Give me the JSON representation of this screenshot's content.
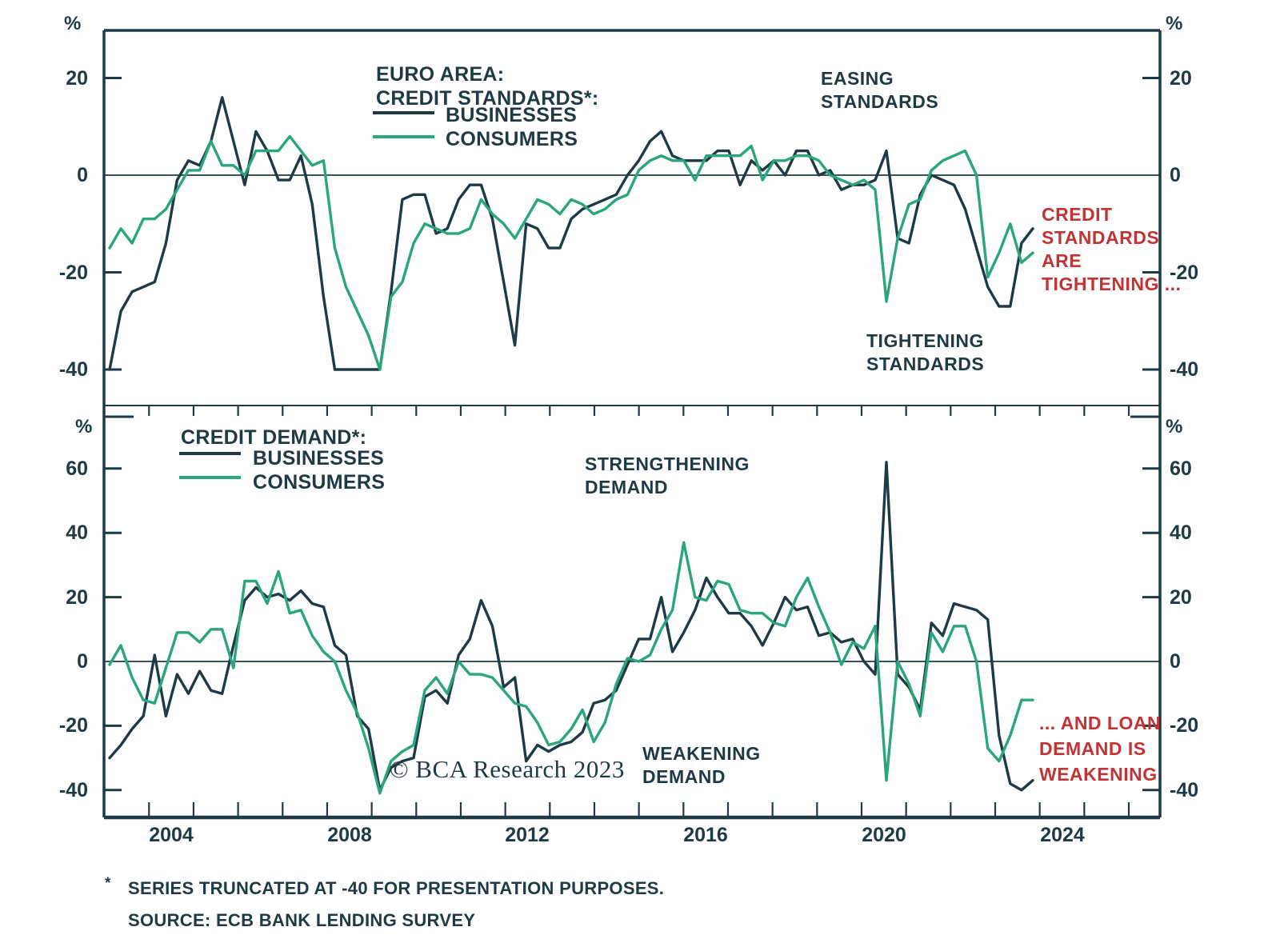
{
  "percent_symbol": "%",
  "x_axis": {
    "labels": [
      "2004",
      "2008",
      "2012",
      "2016",
      "2020",
      "2024"
    ]
  },
  "watermark": "© BCA Research 2023",
  "footnote": {
    "marker": "*",
    "line1": "SERIES TRUNCATED AT -40 FOR PRESENTATION PURPOSES.",
    "line2": "SOURCE: ECB BANK LENDING SURVEY"
  },
  "colors": {
    "businesses": "#1d3a45",
    "consumers": "#2aa57c",
    "red_annotation": "#c23434",
    "axis": "#1d3a45",
    "background": "#fefefe"
  },
  "chart_data": [
    {
      "type": "line",
      "panel": "top",
      "title": "EURO AREA: CREDIT STANDARDS*",
      "legend": {
        "title_lines": [
          "EURO AREA:",
          "CREDIT STANDARDS*:"
        ],
        "entries": [
          "BUSINESSES",
          "CONSUMERS"
        ]
      },
      "x_unit": "quarterly",
      "x_start": "2003Q1",
      "x_end": "2023Q3",
      "y_axis_label": "%",
      "ylim": [
        -45,
        30
      ],
      "y_tick_labels": [
        "20",
        "0",
        "-20",
        "-40"
      ],
      "y_ticks": [
        20,
        0,
        -20,
        -40
      ],
      "grid": "zero-line-only",
      "series": [
        {
          "name": "BUSINESSES",
          "color": "#1d3a45",
          "values": [
            -40,
            -28,
            -24,
            -23,
            -22,
            -14,
            -1,
            3,
            2,
            7,
            16,
            7,
            -2,
            9,
            5,
            -1,
            -1,
            4,
            -6,
            -25,
            -40,
            -40,
            -40,
            -40,
            -40,
            -24,
            -5,
            -4,
            -4,
            -12,
            -11,
            -5,
            -2,
            -2,
            -9,
            -22,
            -35,
            -10,
            -11,
            -15,
            -15,
            -9,
            -7,
            -6,
            -5,
            -4,
            0,
            3,
            7,
            9,
            4,
            3,
            3,
            3,
            5,
            5,
            -2,
            3,
            1,
            3,
            0,
            5,
            5,
            0,
            1,
            -3,
            -2,
            -2,
            -1,
            5,
            -13,
            -14,
            -4,
            0,
            -1,
            -2,
            -7,
            -15,
            -23,
            -27,
            -27,
            -14,
            -11
          ]
        },
        {
          "name": "CONSUMERS",
          "color": "#2aa57c",
          "values": [
            -15,
            -11,
            -14,
            -9,
            -9,
            -7,
            -3,
            1,
            1,
            7,
            2,
            2,
            0,
            5,
            5,
            5,
            8,
            5,
            2,
            3,
            -15,
            -23,
            -28,
            -33,
            -40,
            -25,
            -22,
            -14,
            -10,
            -11,
            -12,
            -12,
            -11,
            -5,
            -8,
            -10,
            -13,
            -9,
            -5,
            -6,
            -8,
            -5,
            -6,
            -8,
            -7,
            -5,
            -4,
            1,
            3,
            4,
            3,
            3,
            -1,
            4,
            4,
            4,
            4,
            6,
            -1,
            3,
            3,
            4,
            4,
            3,
            0,
            -1,
            -2,
            -1,
            -3,
            -26,
            -13,
            -6,
            -5,
            1,
            3,
            4,
            5,
            0,
            -21,
            -16,
            -10,
            -18,
            -16
          ]
        }
      ],
      "annotations": [
        {
          "id": "easing",
          "color": "#1d3a45",
          "lines": {
            "l1": "EASING",
            "l2": "STANDARDS"
          }
        },
        {
          "id": "tightening",
          "color": "#1d3a45",
          "lines": {
            "l1": "TIGHTENING",
            "l2": "STANDARDS"
          }
        },
        {
          "id": "red-note-top",
          "color": "#c23434",
          "lines": {
            "l1": "CREDIT",
            "l2": "STANDARDS",
            "l3": "ARE",
            "l4": "TIGHTENING ..."
          }
        }
      ]
    },
    {
      "type": "line",
      "panel": "bottom",
      "title": "CREDIT DEMAND*",
      "legend": {
        "title_lines": [
          "CREDIT DEMAND*:"
        ],
        "entries": [
          "BUSINESSES",
          "CONSUMERS"
        ]
      },
      "x_unit": "quarterly",
      "x_start": "2003Q1",
      "x_end": "2023Q3",
      "y_axis_label": "%",
      "ylim": [
        -48,
        70
      ],
      "y_tick_labels": [
        "60",
        "40",
        "20",
        "0",
        "-20",
        "-40"
      ],
      "y_ticks": [
        60,
        40,
        20,
        0,
        -20,
        -40
      ],
      "grid": "zero-line-only",
      "series": [
        {
          "name": "BUSINESSES",
          "color": "#1d3a45",
          "values": [
            -30,
            -26,
            -21,
            -17,
            2,
            -17,
            -4,
            -10,
            -3,
            -9,
            -10,
            5,
            19,
            23,
            20,
            21,
            19,
            22,
            18,
            17,
            5,
            2,
            -17,
            -21,
            -40,
            -33,
            -31,
            -30,
            -11,
            -9,
            -13,
            2,
            7,
            19,
            11,
            -8,
            -5,
            -31,
            -26,
            -28,
            -26,
            -25,
            -22,
            -13,
            -12,
            -9,
            -1,
            7,
            7,
            20,
            3,
            9,
            16,
            26,
            20,
            15,
            15,
            11,
            5,
            12,
            20,
            16,
            17,
            8,
            9,
            6,
            7,
            0,
            -4,
            62,
            -4,
            -8,
            -15,
            12,
            8,
            18,
            17,
            16,
            13,
            -23,
            -38,
            -40,
            -37
          ]
        },
        {
          "name": "CONSUMERS",
          "color": "#2aa57c",
          "values": [
            -1,
            5,
            -5,
            -12,
            -13,
            -2,
            9,
            9,
            6,
            10,
            10,
            -2,
            25,
            25,
            18,
            28,
            15,
            16,
            8,
            3,
            0,
            -9,
            -16,
            -27,
            -41,
            -31,
            -28,
            -26,
            -9,
            -5,
            -10,
            0,
            -4,
            -4,
            -5,
            -9,
            -13,
            -14,
            -19,
            -26,
            -25,
            -21,
            -15,
            -25,
            -19,
            -7,
            1,
            0,
            2,
            10,
            16,
            37,
            20,
            19,
            25,
            24,
            16,
            15,
            15,
            12,
            11,
            20,
            26,
            17,
            9,
            -1,
            6,
            4,
            11,
            -37,
            0,
            -7,
            -17,
            9,
            3,
            11,
            11,
            0,
            -27,
            -31,
            -23,
            -12,
            -12
          ]
        }
      ],
      "annotations": [
        {
          "id": "strengthening",
          "color": "#1d3a45",
          "lines": {
            "l1": "STRENGTHENING",
            "l2": "DEMAND"
          }
        },
        {
          "id": "weakening",
          "color": "#1d3a45",
          "lines": {
            "l1": "WEAKENING",
            "l2": "DEMAND"
          }
        },
        {
          "id": "red-note-bottom",
          "color": "#c23434",
          "lines": {
            "l1": "... AND LOAN",
            "l2": "DEMAND IS",
            "l3": "WEAKENING"
          }
        }
      ]
    }
  ]
}
